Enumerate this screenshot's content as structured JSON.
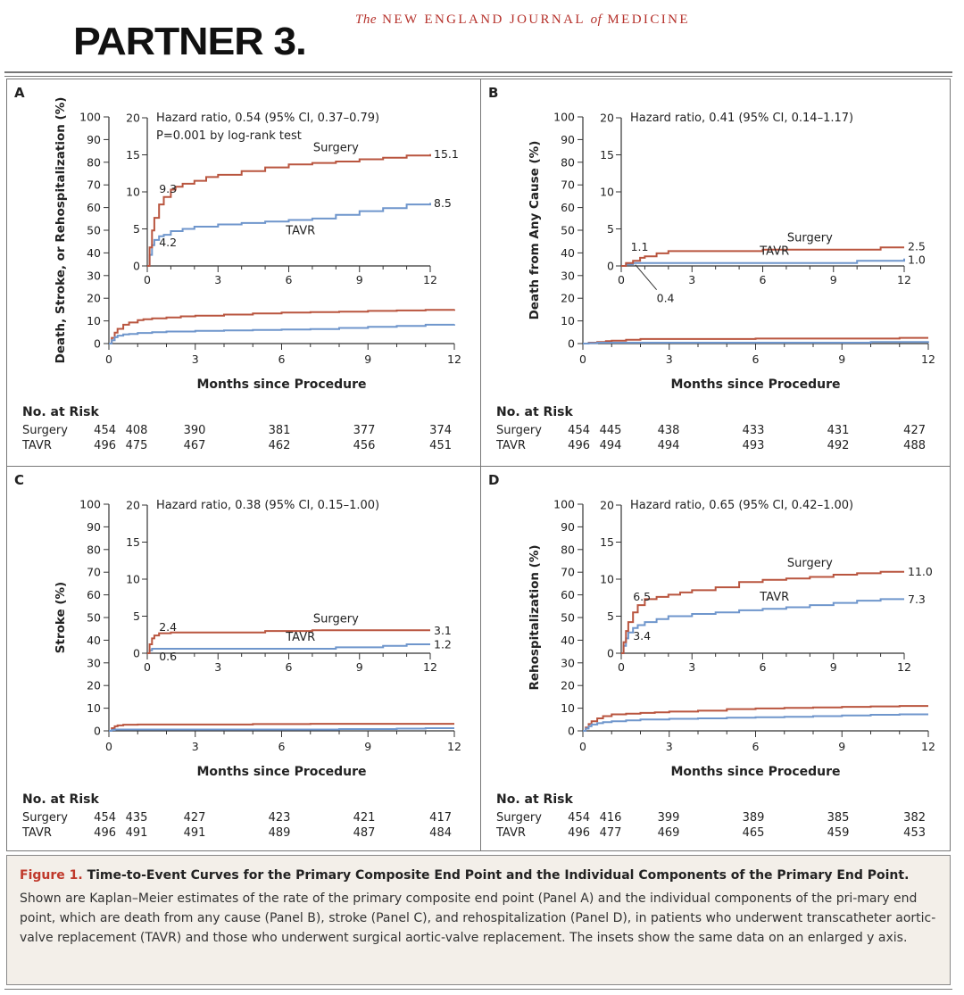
{
  "header": {
    "logo": "PARTNER 3.",
    "journal_pre": "The",
    "journal_main": "NEW ENGLAND JOURNAL",
    "journal_of": "of",
    "journal_post": "MEDICINE"
  },
  "colors": {
    "surgery": "#b9553f",
    "tavr": "#6f96cc",
    "axis": "#333333",
    "panel_border": "#777777",
    "caption_bg": "#f3efe9",
    "figure_label": "#c0392b"
  },
  "risk_table": {
    "title": "No. at Risk",
    "row_surgery": "Surgery",
    "row_tavr": "TAVR"
  },
  "caption": {
    "figure_label": "Figure 1.",
    "title": "Time-to-Event Curves for the Primary Composite End Point and the Individual Components of the Primary End Point.",
    "body": "Shown are Kaplan–Meier estimates of the rate of the primary composite end point (Panel A) and the individual components of the pri-mary end point, which are death from any cause (Panel B), stroke (Panel C), and rehospitalization (Panel D), in patients who underwent transcatheter aortic-valve replacement (TAVR) and those who underwent surgical aortic-valve replacement. The insets show the same data on an enlarged y axis."
  },
  "chart_data": [
    {
      "panel": "A",
      "type": "line",
      "xlabel": "Months since Procedure",
      "ylabel": "Death, Stroke, or Rehospitalization (%)",
      "xlim": [
        0,
        12
      ],
      "ylim": [
        0,
        100
      ],
      "x_ticks": [
        "0",
        "3",
        "6",
        "9",
        "12"
      ],
      "y_ticks": [
        "0",
        "10",
        "20",
        "30",
        "40",
        "50",
        "60",
        "70",
        "80",
        "90",
        "100"
      ],
      "inset": {
        "ylim": [
          0,
          20
        ],
        "y_ticks": [
          "0",
          "5",
          "10",
          "15",
          "20"
        ],
        "x_ticks": [
          "0",
          "3",
          "6",
          "9",
          "12"
        ],
        "annotation_lines": [
          "Hazard ratio, 0.54 (95% CI, 0.37–0.79)",
          "P=0.001 by log-rank test"
        ],
        "surgery_label": "Surgery",
        "tavr_label": "TAVR",
        "end_labels": {
          "surgery": "15.1",
          "tavr": "8.5"
        },
        "point_labels": {
          "surgery": "9.3",
          "tavr": "4.2"
        }
      },
      "series": [
        {
          "name": "Surgery",
          "x": [
            0,
            0.1,
            0.2,
            0.3,
            0.5,
            0.7,
            1.0,
            1.2,
            1.5,
            2,
            2.5,
            3,
            4,
            5,
            6,
            7,
            8,
            9,
            10,
            11,
            12
          ],
          "y": [
            0,
            2.5,
            4.8,
            6.5,
            8.3,
            9.3,
            10.3,
            10.7,
            11.1,
            11.5,
            12,
            12.3,
            12.8,
            13.3,
            13.7,
            13.9,
            14.1,
            14.4,
            14.6,
            14.9,
            15.1
          ]
        },
        {
          "name": "TAVR",
          "x": [
            0,
            0.1,
            0.2,
            0.3,
            0.5,
            0.7,
            1.0,
            1.5,
            2,
            3,
            4,
            5,
            6,
            7,
            8,
            9,
            10,
            11,
            12
          ],
          "y": [
            0,
            1.5,
            2.8,
            3.5,
            4.0,
            4.2,
            4.7,
            5.0,
            5.3,
            5.6,
            5.8,
            6.0,
            6.2,
            6.4,
            6.9,
            7.4,
            7.8,
            8.3,
            8.5
          ]
        }
      ],
      "risk": {
        "months": [
          "0",
          "1",
          "3",
          "6",
          "9",
          "12"
        ],
        "surgery": [
          "454",
          "408",
          "390",
          "381",
          "377",
          "374"
        ],
        "tavr": [
          "496",
          "475",
          "467",
          "462",
          "456",
          "451"
        ]
      }
    },
    {
      "panel": "B",
      "type": "line",
      "xlabel": "Months since Procedure",
      "ylabel": "Death from Any Cause (%)",
      "xlim": [
        0,
        12
      ],
      "ylim": [
        0,
        100
      ],
      "x_ticks": [
        "0",
        "3",
        "6",
        "9",
        "12"
      ],
      "y_ticks": [
        "0",
        "10",
        "20",
        "30",
        "40",
        "50",
        "60",
        "70",
        "80",
        "90",
        "100"
      ],
      "inset": {
        "ylim": [
          0,
          20
        ],
        "y_ticks": [
          "0",
          "5",
          "10",
          "15",
          "20"
        ],
        "x_ticks": [
          "0",
          "3",
          "6",
          "9",
          "12"
        ],
        "annotation_lines": [
          "Hazard ratio, 0.41 (95% CI, 0.14–1.17)"
        ],
        "surgery_label": "Surgery",
        "tavr_label": "TAVR",
        "end_labels": {
          "surgery": "2.5",
          "tavr": "1.0"
        },
        "point_labels": {
          "surgery": "1.1",
          "tavr": "0.4"
        }
      },
      "series": [
        {
          "name": "Surgery",
          "x": [
            0,
            0.2,
            0.5,
            0.8,
            1.0,
            1.5,
            2.0,
            3,
            4,
            5,
            6,
            7,
            8,
            9,
            10,
            11,
            12
          ],
          "y": [
            0,
            0.4,
            0.7,
            1.1,
            1.3,
            1.7,
            2.0,
            2.0,
            2.0,
            2.0,
            2.2,
            2.2,
            2.2,
            2.2,
            2.2,
            2.5,
            2.5
          ]
        },
        {
          "name": "TAVR",
          "x": [
            0,
            0.2,
            0.5,
            1.0,
            2,
            3,
            4,
            5,
            6,
            7,
            8,
            9,
            10,
            11,
            12
          ],
          "y": [
            0,
            0.2,
            0.4,
            0.4,
            0.4,
            0.4,
            0.4,
            0.4,
            0.4,
            0.4,
            0.4,
            0.4,
            0.7,
            0.7,
            1.0
          ]
        }
      ],
      "risk": {
        "months": [
          "0",
          "1",
          "3",
          "6",
          "9",
          "12"
        ],
        "surgery": [
          "454",
          "445",
          "438",
          "433",
          "431",
          "427"
        ],
        "tavr": [
          "496",
          "494",
          "494",
          "493",
          "492",
          "488"
        ]
      }
    },
    {
      "panel": "C",
      "type": "line",
      "xlabel": "Months since Procedure",
      "ylabel": "Stroke (%)",
      "xlim": [
        0,
        12
      ],
      "ylim": [
        0,
        100
      ],
      "x_ticks": [
        "0",
        "3",
        "6",
        "9",
        "12"
      ],
      "y_ticks": [
        "0",
        "10",
        "20",
        "30",
        "40",
        "50",
        "60",
        "70",
        "80",
        "90",
        "100"
      ],
      "inset": {
        "ylim": [
          0,
          20
        ],
        "y_ticks": [
          "0",
          "5",
          "10",
          "15",
          "20"
        ],
        "x_ticks": [
          "0",
          "3",
          "6",
          "9",
          "12"
        ],
        "annotation_lines": [
          "Hazard ratio, 0.38 (95% CI, 0.15–1.00)"
        ],
        "surgery_label": "Surgery",
        "tavr_label": "TAVR",
        "end_labels": {
          "surgery": "3.1",
          "tavr": "1.2"
        },
        "point_labels": {
          "surgery": "2.4",
          "tavr": "0.6"
        }
      },
      "series": [
        {
          "name": "Surgery",
          "x": [
            0,
            0.1,
            0.2,
            0.3,
            0.5,
            1.0,
            2,
            3,
            4,
            5,
            6,
            7,
            8,
            9,
            10,
            11,
            12
          ],
          "y": [
            0,
            1.2,
            2.0,
            2.4,
            2.7,
            2.8,
            2.8,
            2.8,
            2.8,
            3.0,
            3.0,
            3.1,
            3.1,
            3.1,
            3.1,
            3.1,
            3.1
          ]
        },
        {
          "name": "TAVR",
          "x": [
            0,
            0.1,
            0.2,
            0.3,
            0.5,
            1.0,
            2,
            3,
            4,
            5,
            6,
            7,
            8,
            9,
            10,
            11,
            12
          ],
          "y": [
            0,
            0.4,
            0.6,
            0.6,
            0.6,
            0.6,
            0.6,
            0.6,
            0.6,
            0.6,
            0.6,
            0.6,
            0.8,
            0.8,
            1.0,
            1.2,
            1.2
          ]
        }
      ],
      "risk": {
        "months": [
          "0",
          "1",
          "3",
          "6",
          "9",
          "12"
        ],
        "surgery": [
          "454",
          "435",
          "427",
          "423",
          "421",
          "417"
        ],
        "tavr": [
          "496",
          "491",
          "491",
          "489",
          "487",
          "484"
        ]
      }
    },
    {
      "panel": "D",
      "type": "line",
      "xlabel": "Months since Procedure",
      "ylabel": "Rehospitalization (%)",
      "xlim": [
        0,
        12
      ],
      "ylim": [
        0,
        100
      ],
      "x_ticks": [
        "0",
        "3",
        "6",
        "9",
        "12"
      ],
      "y_ticks": [
        "0",
        "10",
        "20",
        "30",
        "40",
        "50",
        "60",
        "70",
        "80",
        "90",
        "100"
      ],
      "inset": {
        "ylim": [
          0,
          20
        ],
        "y_ticks": [
          "0",
          "5",
          "10",
          "15",
          "20"
        ],
        "x_ticks": [
          "0",
          "3",
          "6",
          "9",
          "12"
        ],
        "annotation_lines": [
          "Hazard ratio, 0.65 (95% CI, 0.42–1.00)"
        ],
        "surgery_label": "Surgery",
        "tavr_label": "TAVR",
        "end_labels": {
          "surgery": "11.0",
          "tavr": "7.3"
        },
        "point_labels": {
          "surgery": "6.5",
          "tavr": "3.4"
        }
      },
      "series": [
        {
          "name": "Surgery",
          "x": [
            0,
            0.1,
            0.2,
            0.3,
            0.5,
            0.7,
            1.0,
            1.5,
            2,
            2.5,
            3,
            4,
            5,
            6,
            7,
            8,
            9,
            10,
            11,
            12
          ],
          "y": [
            0,
            1.5,
            3.0,
            4.2,
            5.5,
            6.5,
            7.3,
            7.6,
            7.9,
            8.2,
            8.5,
            8.9,
            9.6,
            9.9,
            10.1,
            10.3,
            10.6,
            10.8,
            11.0,
            11.0
          ]
        },
        {
          "name": "TAVR",
          "x": [
            0,
            0.1,
            0.2,
            0.3,
            0.5,
            0.7,
            1.0,
            1.5,
            2,
            3,
            4,
            5,
            6,
            7,
            8,
            9,
            10,
            11,
            12
          ],
          "y": [
            0,
            1.0,
            2.0,
            2.8,
            3.4,
            3.8,
            4.2,
            4.6,
            5.0,
            5.3,
            5.5,
            5.8,
            6.0,
            6.2,
            6.5,
            6.8,
            7.1,
            7.3,
            7.3
          ]
        }
      ],
      "risk": {
        "months": [
          "0",
          "1",
          "3",
          "6",
          "9",
          "12"
        ],
        "surgery": [
          "454",
          "416",
          "399",
          "389",
          "385",
          "382"
        ],
        "tavr": [
          "496",
          "477",
          "469",
          "465",
          "459",
          "453"
        ]
      }
    }
  ]
}
